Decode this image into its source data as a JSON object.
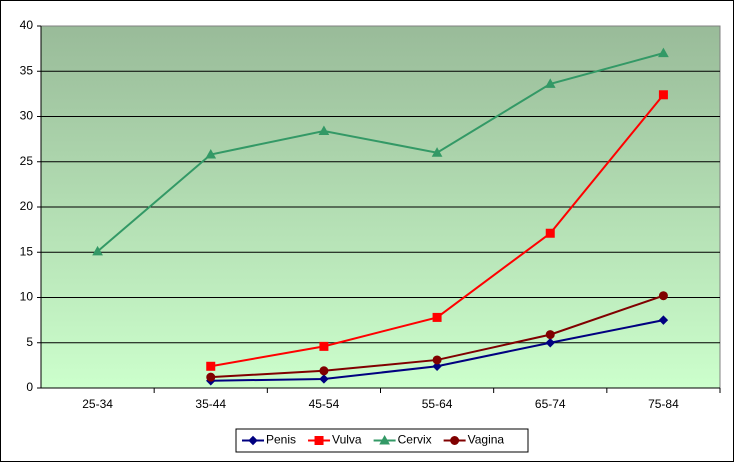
{
  "chart_data": {
    "type": "line",
    "categories": [
      "25-34",
      "35-44",
      "45-54",
      "55-64",
      "65-74",
      "75-84"
    ],
    "series": [
      {
        "name": "Penis",
        "color": "#000080",
        "marker": "diamond",
        "values": [
          null,
          0.8,
          1.0,
          2.4,
          5.0,
          7.5
        ]
      },
      {
        "name": "Vulva",
        "color": "#ff0000",
        "marker": "square",
        "values": [
          null,
          2.4,
          4.6,
          7.8,
          17.1,
          32.4
        ]
      },
      {
        "name": "Cervix",
        "color": "#339966",
        "marker": "triangle",
        "values": [
          15.1,
          25.8,
          28.4,
          26.0,
          33.6,
          37.0
        ]
      },
      {
        "name": "Vagina",
        "color": "#800000",
        "marker": "circle",
        "values": [
          null,
          1.2,
          1.9,
          3.1,
          5.9,
          10.2
        ]
      }
    ],
    "ylim": [
      0,
      40
    ],
    "yticks": [
      0,
      5,
      10,
      15,
      20,
      25,
      30,
      35,
      40
    ],
    "grid": true,
    "legend": "bottom"
  }
}
